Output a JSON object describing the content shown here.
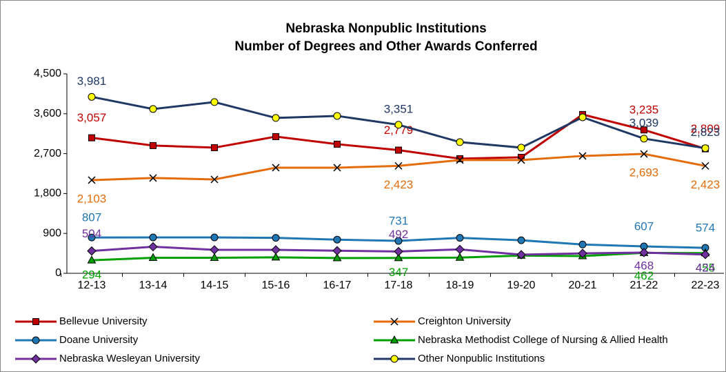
{
  "chart_data": {
    "type": "line",
    "title": "Nebraska Nonpublic Institutions",
    "subtitle": "Number of Degrees and Other Awards Conferred",
    "categories": [
      "12-13",
      "13-14",
      "14-15",
      "15-16",
      "16-17",
      "17-18",
      "18-19",
      "19-20",
      "20-21",
      "21-22",
      "22-23"
    ],
    "ylim": [
      0,
      4500
    ],
    "yticks": [
      0,
      900,
      {
        "value": 1800,
        "label": "1,800"
      },
      {
        "value": 2700,
        "label": "2,700"
      },
      {
        "value": 3600,
        "label": "3,600"
      },
      {
        "value": 4500,
        "label": "4,500"
      }
    ],
    "grid": false,
    "legend": "bottom",
    "series": [
      {
        "name": "Bellevue University",
        "color": "#c00000",
        "marker": "square",
        "values": [
          3057,
          2882,
          2835,
          3084,
          2913,
          2779,
          2586,
          2617,
          3583,
          3235,
          2809
        ],
        "value_labels": [
          "3,057",
          null,
          null,
          null,
          null,
          "2,779",
          null,
          null,
          null,
          "3,235",
          "2,809"
        ]
      },
      {
        "name": "Creighton University",
        "color": "#e46c0a",
        "marker": "x",
        "values": [
          2103,
          2150,
          2118,
          2383,
          2383,
          2423,
          2555,
          2555,
          2648,
          2693,
          2423
        ],
        "value_labels": [
          "2,103",
          null,
          null,
          null,
          null,
          "2,423",
          null,
          null,
          null,
          "2,693",
          "2,423"
        ]
      },
      {
        "name": "Doane University",
        "color": "#1f77b4",
        "marker": "circle",
        "values": [
          807,
          810,
          810,
          800,
          760,
          731,
          800,
          745,
          650,
          607,
          574
        ],
        "value_labels": [
          null,
          null,
          null,
          null,
          null,
          null,
          null,
          null,
          null,
          null,
          null
        ]
      },
      {
        "name": "Nebraska Methodist College of Nursing & Allied Health",
        "color": "#00a000",
        "marker": "triangle",
        "values": [
          294,
          350,
          350,
          360,
          345,
          347,
          355,
          400,
          390,
          462,
          455
        ],
        "value_labels": [
          null,
          null,
          null,
          null,
          null,
          null,
          null,
          null,
          null,
          null,
          null
        ]
      },
      {
        "name": "Nebraska Wesleyan University",
        "color": "#7030a0",
        "marker": "diamond",
        "values": [
          504,
          600,
          530,
          530,
          510,
          492,
          540,
          420,
          450,
          468,
          424
        ],
        "value_labels": [
          null,
          null,
          null,
          null,
          null,
          null,
          null,
          null,
          null,
          null,
          null
        ]
      },
      {
        "name": "Other Nonpublic Institutions",
        "color": "#1f3864",
        "marker": "circle-yellow",
        "values": [
          3981,
          3707,
          3863,
          3505,
          3551,
          3351,
          2960,
          2835,
          3520,
          3039,
          2823
        ],
        "value_labels": [
          "3,981",
          null,
          null,
          null,
          null,
          "3,351",
          null,
          null,
          null,
          "3,039",
          "2,823"
        ]
      }
    ],
    "labeled_points": {
      "2": [
        0,
        5,
        9,
        10
      ],
      "3": [
        0,
        5,
        9,
        10
      ],
      "4": [
        0,
        5,
        9,
        10
      ]
    }
  }
}
